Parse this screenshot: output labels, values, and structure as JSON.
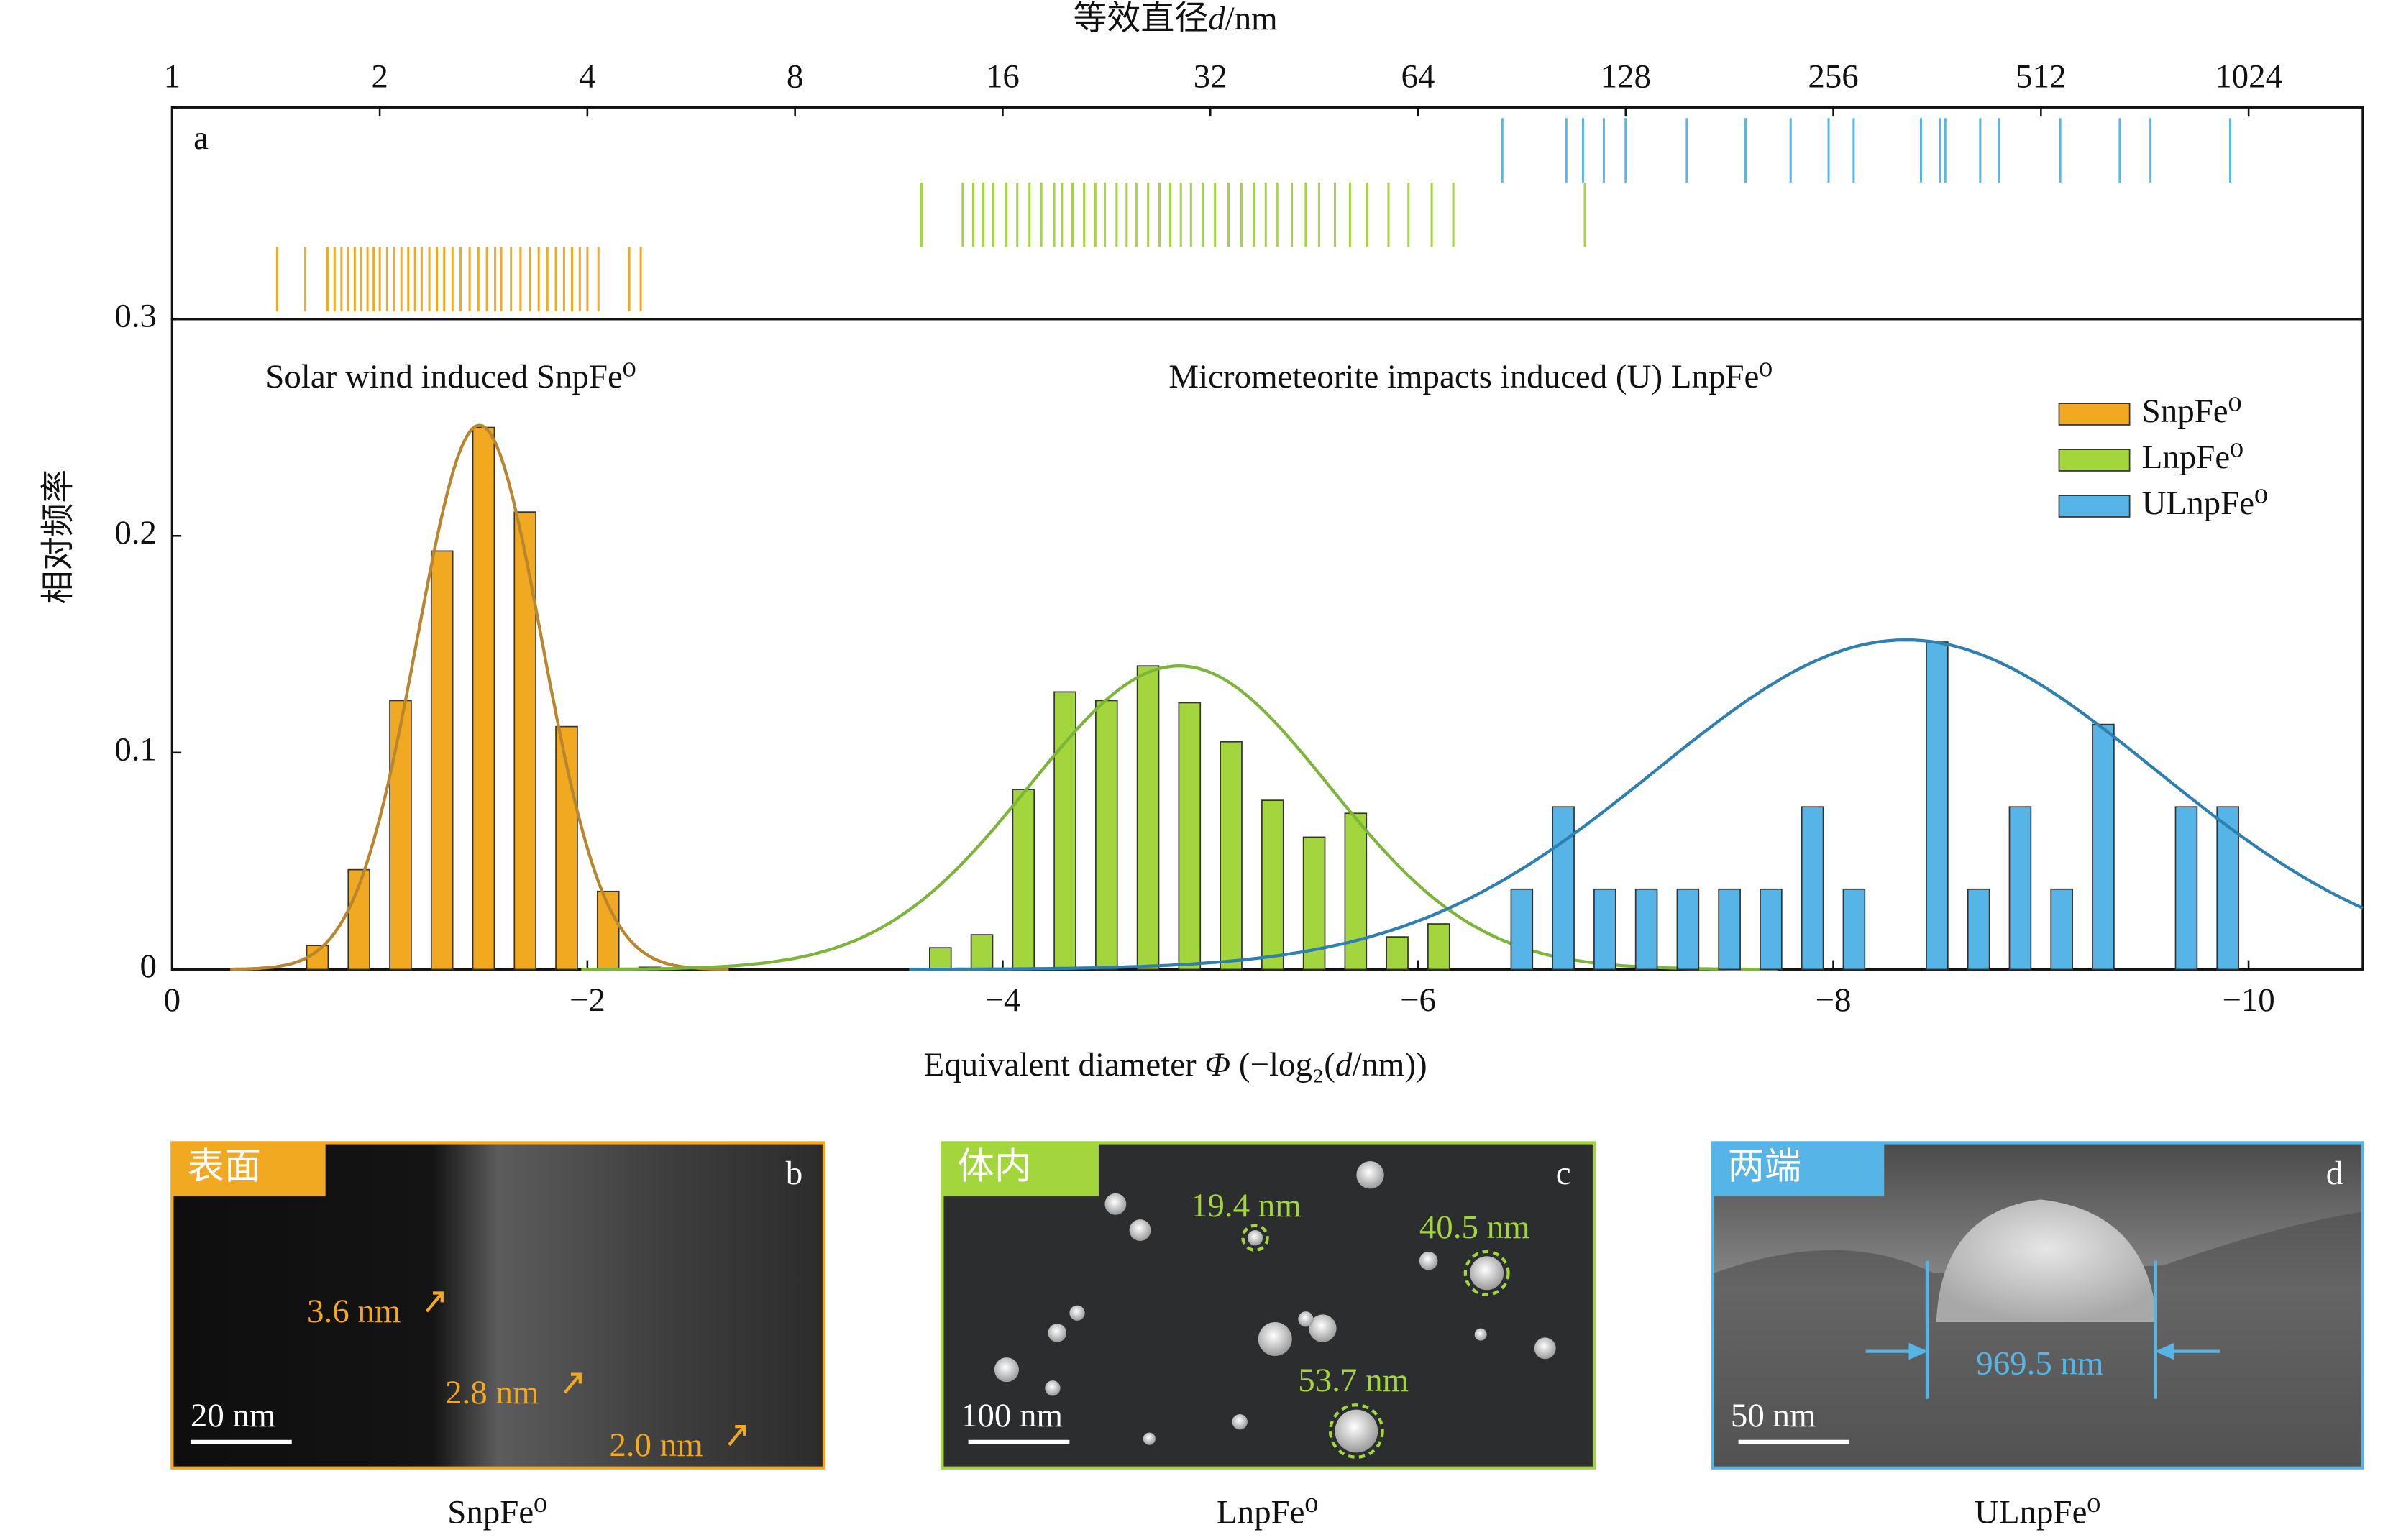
{
  "chart_data": {
    "type": "bar",
    "panel_label": "a",
    "ylabel": "相对频率",
    "xlabel": [
      "Equivalent diameter ",
      "Φ",
      " (−log₂(",
      "d",
      "/nm))"
    ],
    "top_xlabel": [
      "等效直径",
      "d",
      "/nm"
    ],
    "xlim": [
      0,
      -10.55
    ],
    "xticks": [
      0,
      {
        "value": -2,
        "label": "−2"
      },
      {
        "value": -4,
        "label": "−4"
      },
      {
        "value": -6,
        "label": "−6"
      },
      {
        "value": -8,
        "label": "−8"
      },
      {
        "value": -10,
        "label": "−10"
      }
    ],
    "ylim": [
      0,
      0.3
    ],
    "yticks": [
      0,
      0.1,
      0.2,
      0.3
    ],
    "top_xlim": [
      1,
      1499
    ],
    "top_xscale": "log2",
    "top_xticks": [
      1,
      2,
      4,
      8,
      16,
      32,
      64,
      128,
      256,
      512,
      1024
    ],
    "annotations": [
      {
        "text": "Solar wind induced SnpFe⁰",
        "x": -0.45,
        "y": 0.272
      },
      {
        "text": "Micrometeorite impacts induced (U) LnpFe⁰",
        "x": -4.8,
        "y": 0.272
      }
    ],
    "legend": "upper right",
    "series": [
      {
        "name": "SnpFe⁰",
        "color": "#f2a922",
        "fit_color": "#b8862e",
        "x": [
          -0.7,
          -0.9,
          -1.1,
          -1.3,
          -1.5,
          -1.7,
          -1.9,
          -2.1,
          -2.3
        ],
        "values": [
          0.011,
          0.046,
          0.124,
          0.193,
          0.25,
          0.211,
          0.112,
          0.036,
          0.001
        ],
        "fit": {
          "mean": -1.48,
          "sd": 0.3,
          "peak": 0.251
        },
        "rug": [
          1.42,
          1.56,
          1.68,
          1.72,
          1.76,
          1.8,
          1.84,
          1.88,
          1.92,
          1.96,
          2.0,
          2.05,
          2.1,
          2.15,
          2.2,
          2.25,
          2.3,
          2.36,
          2.42,
          2.48,
          2.55,
          2.62,
          2.7,
          2.78,
          2.86,
          2.94,
          3.0,
          3.1,
          3.2,
          3.3,
          3.4,
          3.5,
          3.6,
          3.7,
          3.8,
          3.9,
          4.0,
          4.15,
          4.6,
          4.78
        ]
      },
      {
        "name": "LnpFe⁰",
        "color": "#a3d63c",
        "fit_color": "#7db43a",
        "x": [
          -3.7,
          -3.9,
          -4.1,
          -4.3,
          -4.5,
          -4.7,
          -4.9,
          -5.1,
          -5.3,
          -5.5,
          -5.7,
          -5.9,
          -6.1
        ],
        "values": [
          0.01,
          0.016,
          0.083,
          0.128,
          0.124,
          0.14,
          0.123,
          0.105,
          0.078,
          0.061,
          0.072,
          0.015,
          0.021
        ],
        "fit": {
          "mean": -4.85,
          "sd": 0.72,
          "peak": 0.14
        },
        "rug": [
          12.2,
          14.0,
          14.5,
          15.0,
          15.5,
          16.2,
          16.8,
          17.5,
          18.2,
          19.0,
          19.5,
          20.2,
          21.0,
          21.8,
          22.5,
          23.4,
          24.2,
          25.0,
          26.0,
          27.0,
          28.0,
          29.0,
          30.0,
          31.2,
          32.5,
          34.0,
          35.5,
          37.0,
          38.5,
          40.0,
          42.0,
          44.0,
          46.0,
          48.5,
          51.0,
          54.0,
          58.0,
          62.0,
          67.0,
          72.0,
          111.7
        ]
      },
      {
        "name": "ULnpFe⁰",
        "color": "#56b5e6",
        "fit_color": "#2f7fb0",
        "x": [
          -6.5,
          -6.7,
          -6.9,
          -7.1,
          -7.3,
          -7.5,
          -7.7,
          -7.9,
          -8.1,
          -8.5,
          -8.7,
          -8.9,
          -9.1,
          -9.3,
          -9.7,
          -9.9
        ],
        "values": [
          0.037,
          0.075,
          0.037,
          0.037,
          0.037,
          0.037,
          0.037,
          0.075,
          0.037,
          0.151,
          0.037,
          0.075,
          0.037,
          0.113,
          0.075,
          0.075
        ],
        "fit": {
          "mean": -8.35,
          "sd": 1.2,
          "peak": 0.152
        },
        "rug": [
          84.8,
          105,
          111,
          119,
          128,
          157,
          191,
          222,
          252,
          274,
          343,
          366,
          372,
          418,
          445,
          546,
          666,
          738,
          963
        ]
      }
    ]
  },
  "panels": [
    {
      "label": "b",
      "tag": "表面",
      "scale": "20 nm",
      "caption": "SnpFe⁰",
      "notes": [
        "3.6 nm",
        "2.8 nm",
        "2.0 nm"
      ]
    },
    {
      "label": "c",
      "tag": "体内",
      "scale": "100 nm",
      "caption": "LnpFe⁰",
      "notes": [
        "19.4 nm",
        "40.5 nm",
        "53.7 nm"
      ]
    },
    {
      "label": "d",
      "tag": "两端",
      "scale": "50 nm",
      "caption": "ULnpFe⁰",
      "notes": [
        "969.5 nm"
      ]
    }
  ]
}
